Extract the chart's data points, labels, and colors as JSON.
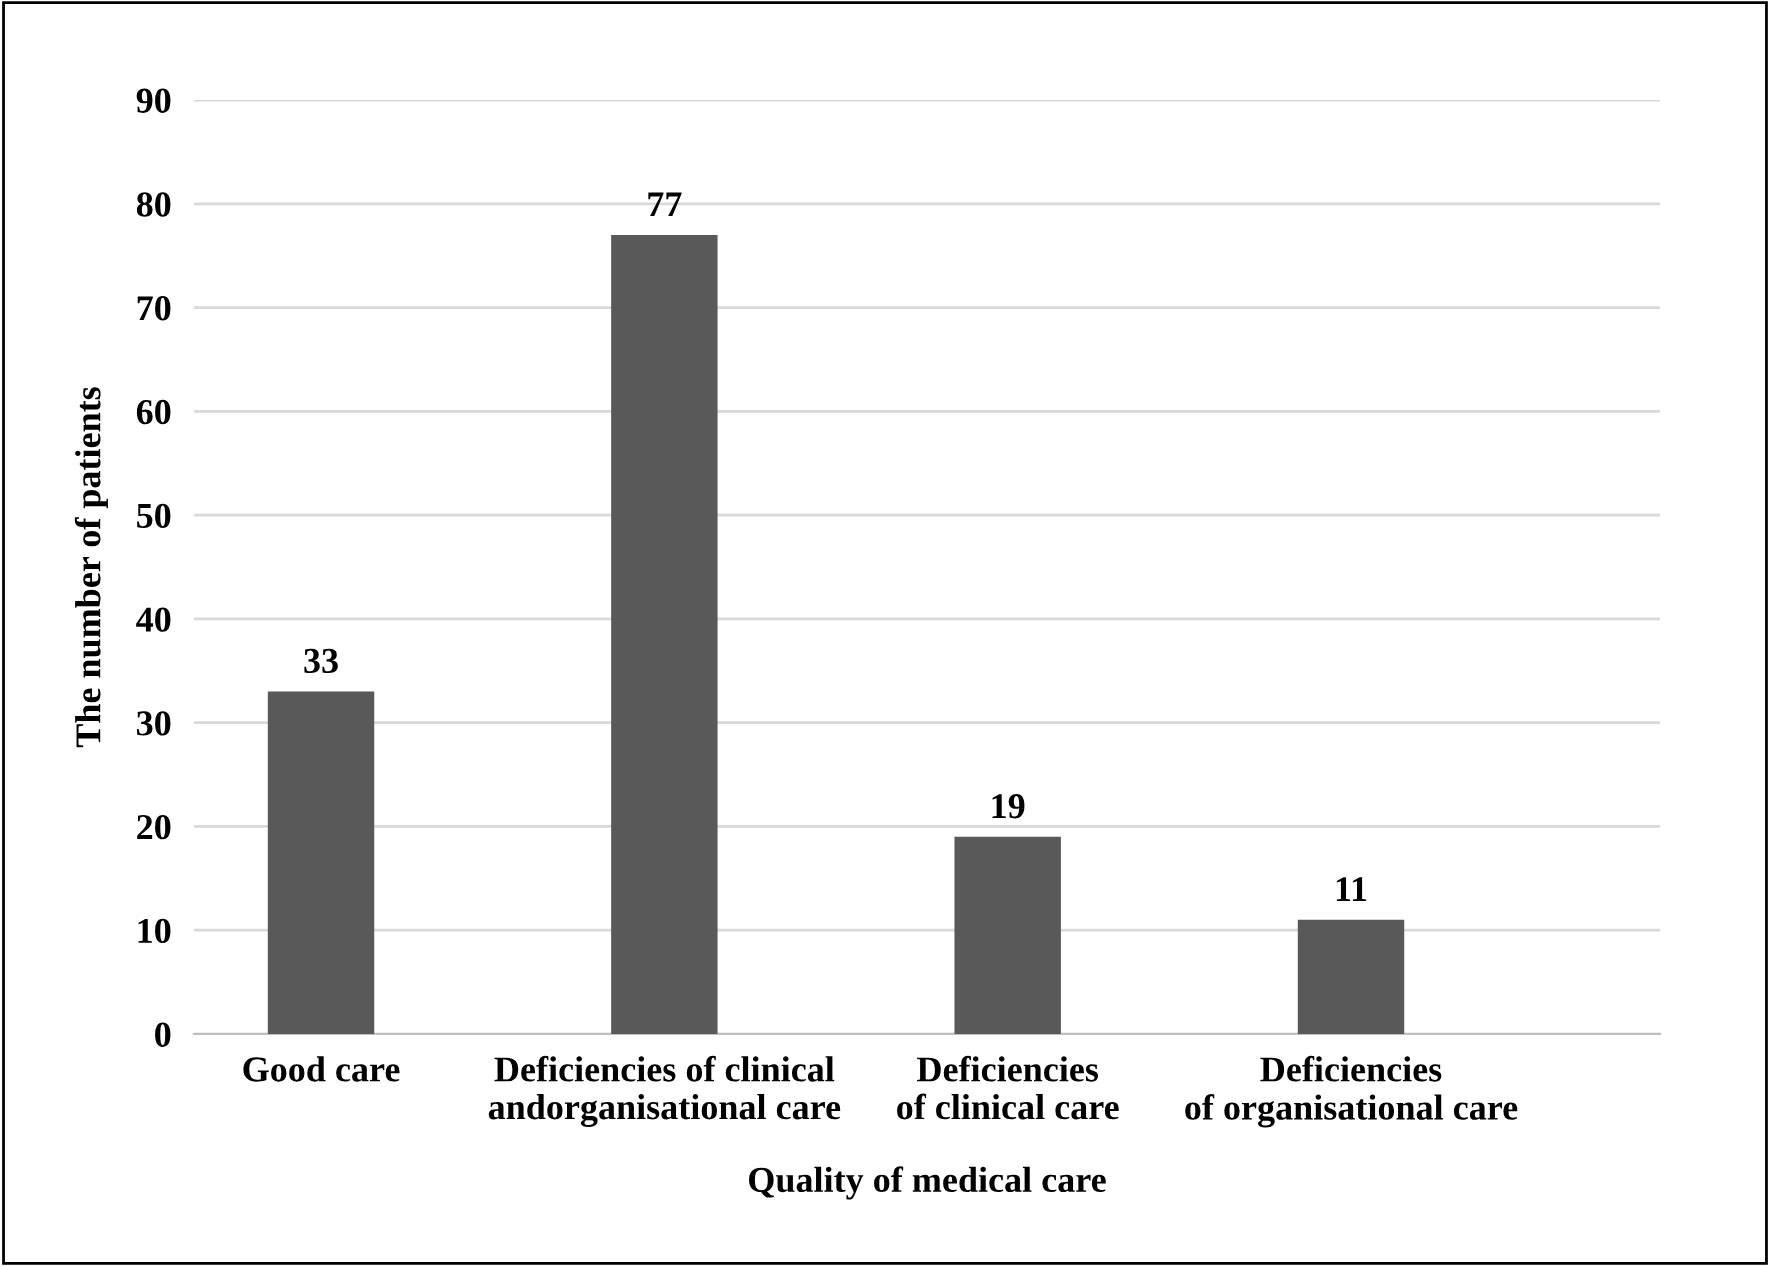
{
  "chart_data": {
    "type": "bar",
    "xlabel": "Quality of medical care",
    "ylabel": "The number of patients",
    "categories": [
      "Good care",
      "Deficiencies of clinical\nandorganisational care",
      "Deficiencies\nof clinical care",
      "Deficiencies\nof organisational care"
    ],
    "values": [
      33,
      77,
      19,
      11
    ],
    "color": "#595959",
    "ylim": [
      0,
      90
    ],
    "yticks": [
      0,
      10,
      20,
      30,
      40,
      50,
      60,
      70,
      80,
      90
    ],
    "grid": "y",
    "data_labels": true
  }
}
